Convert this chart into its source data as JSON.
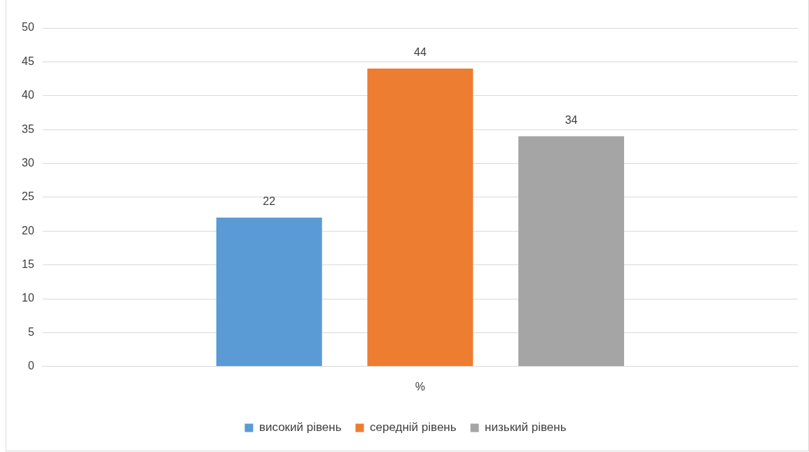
{
  "chart_data": {
    "type": "bar",
    "categories": [
      "%"
    ],
    "series": [
      {
        "name": "високий рівень",
        "color": "#5b9bd5",
        "values": [
          22
        ]
      },
      {
        "name": "середній рівень",
        "color": "#ed7d31",
        "values": [
          44
        ]
      },
      {
        "name": "низький рівень",
        "color": "#a5a5a5",
        "values": [
          34
        ]
      }
    ],
    "ylim": [
      0,
      50
    ],
    "yticks": [
      0,
      5,
      10,
      15,
      20,
      25,
      30,
      35,
      40,
      45,
      50
    ],
    "grid": "y",
    "legend": "bottom",
    "data_labels": true
  }
}
